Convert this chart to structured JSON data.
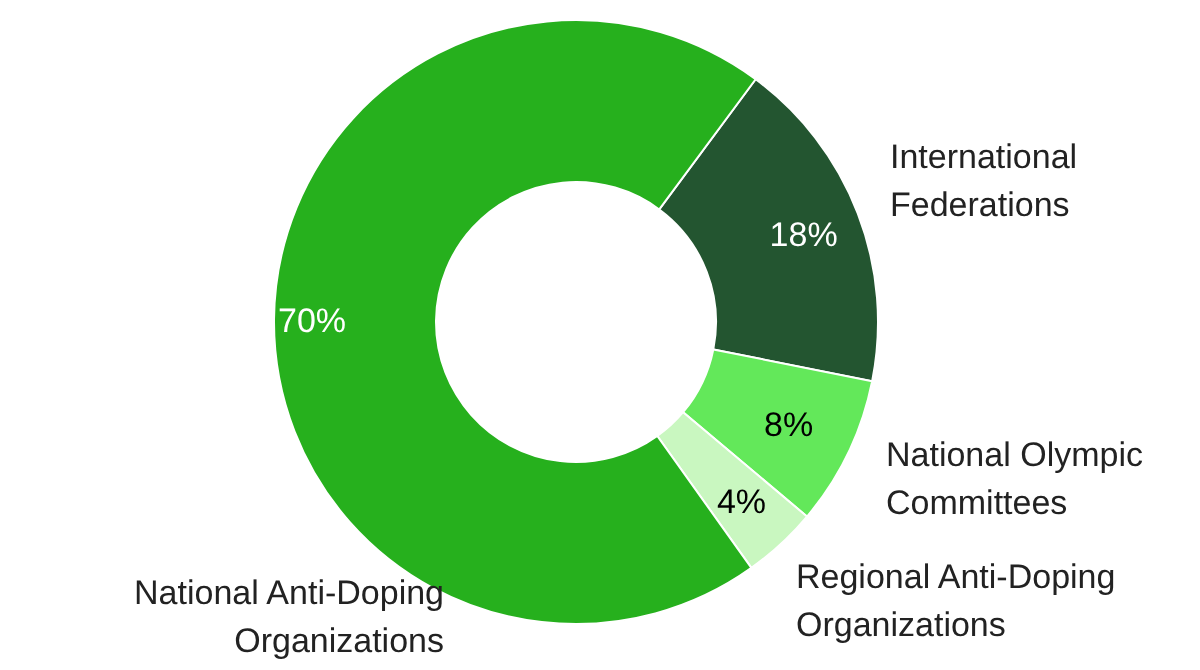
{
  "chart_data": {
    "type": "donut",
    "categories": [
      "International Federations",
      "National Olympic Committees",
      "Regional Anti-Doping Organizations",
      "National Anti-Doping Organizations"
    ],
    "values": [
      18,
      8,
      4,
      70
    ],
    "colors": [
      "#235530",
      "#63e85a",
      "#c9f7c0",
      "#26b01d"
    ],
    "value_labels": [
      "18%",
      "8%",
      "4%",
      "70%"
    ]
  }
}
